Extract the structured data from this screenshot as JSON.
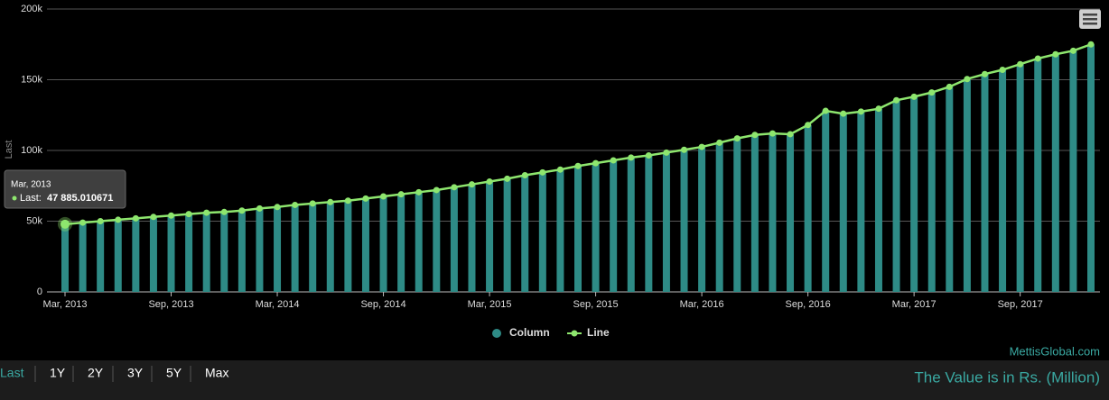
{
  "chart_data": {
    "type": "bar-line",
    "y_axis_label": "Last",
    "categories": [
      "Mar, 2013",
      null,
      null,
      null,
      null,
      null,
      "Sep, 2013",
      null,
      null,
      null,
      null,
      null,
      "Mar, 2014",
      null,
      null,
      null,
      null,
      null,
      "Sep, 2014",
      null,
      null,
      null,
      null,
      null,
      "Mar, 2015",
      null,
      null,
      null,
      null,
      null,
      "Sep, 2015",
      null,
      null,
      null,
      null,
      null,
      "Mar, 2016",
      null,
      null,
      null,
      null,
      null,
      "Sep, 2016",
      null,
      null,
      null,
      null,
      null,
      "Mar, 2017",
      null,
      null,
      null,
      null,
      null,
      "Sep, 2017",
      null,
      null,
      null,
      null
    ],
    "series": [
      {
        "name": "Column",
        "color": "#2e8b86",
        "values": [
          47885.010671,
          49000,
          50000,
          51000,
          52000,
          53000,
          54000,
          55000,
          56000,
          56500,
          57500,
          59000,
          60000,
          61500,
          62500,
          63500,
          64500,
          66000,
          67500,
          69000,
          70500,
          72000,
          74000,
          76000,
          78000,
          80000,
          82500,
          84500,
          86500,
          89000,
          91000,
          93000,
          95000,
          96500,
          98500,
          100500,
          102500,
          105500,
          108500,
          111000,
          112000,
          111500,
          118000,
          128000,
          126000,
          127500,
          129500,
          135500,
          138000,
          141000,
          145000,
          150500,
          154000,
          157000,
          161000,
          165000,
          168000,
          170500,
          175000
        ]
      },
      {
        "name": "Line",
        "color": "#8ee66e",
        "values": [
          47885.010671,
          49000,
          50000,
          51000,
          52000,
          53000,
          54000,
          55000,
          56000,
          56500,
          57500,
          59000,
          60000,
          61500,
          62500,
          63500,
          64500,
          66000,
          67500,
          69000,
          70500,
          72000,
          74000,
          76000,
          78000,
          80000,
          82500,
          84500,
          86500,
          89000,
          91000,
          93000,
          95000,
          96500,
          98500,
          100500,
          102500,
          105500,
          108500,
          111000,
          112000,
          111500,
          118000,
          128000,
          126000,
          127500,
          129500,
          135500,
          138000,
          141000,
          145000,
          150500,
          154000,
          157000,
          161000,
          165000,
          168000,
          170500,
          175000
        ]
      }
    ],
    "ylim": [
      0,
      200000
    ],
    "yticks": [
      0,
      {
        "value": 50000,
        "label": "50k"
      },
      {
        "value": 100000,
        "label": "100k"
      },
      {
        "value": 150000,
        "label": "150k"
      },
      {
        "value": 200000,
        "label": "200k"
      }
    ],
    "grid": true,
    "legend": "bottom",
    "tooltip": {
      "index": 0,
      "label": "Last:",
      "value_label": "47 885.010671"
    }
  },
  "credit": "MettisGlobal.com",
  "range_buttons": [
    "Last",
    "1Y",
    "2Y",
    "3Y",
    "5Y",
    "Max"
  ],
  "note": "The Value is in Rs. (Million)"
}
